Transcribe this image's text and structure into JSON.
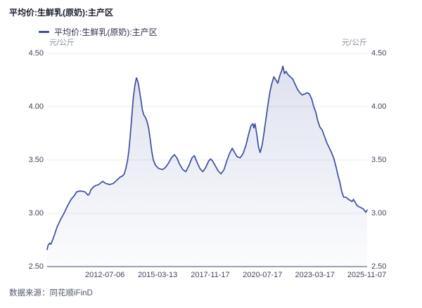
{
  "header": {
    "title": "平均价:生鲜乳(原奶):主产区"
  },
  "legend": {
    "series_label": "平均价:生鲜乳(原奶):主产区"
  },
  "axes": {
    "left_unit": "元/公斤",
    "right_unit": "元/公斤",
    "y_ticks": [
      "2.50",
      "3.00",
      "3.50",
      "4.00",
      "4.50"
    ],
    "x_ticks": [
      "2012-07-06",
      "2015-03-13",
      "2017-11-17",
      "2020-07-17",
      "2023-03-17",
      "2025-11-07"
    ]
  },
  "footer": {
    "source": "数据来源：同花顺iFinD"
  },
  "colors": {
    "line": "#3C4E9E",
    "fill_top": "rgba(63,81,160,0.17)",
    "fill_bottom": "rgba(63,81,160,0.02)",
    "grid": "#EAEBF2",
    "axis_line": "#9BA1B5",
    "title_text": "#1B1E2E",
    "tick_text": "#3F455C",
    "unit_text": "#8A90A3",
    "source_text": "#50566B"
  },
  "chart_data": {
    "type": "area",
    "title": "平均价:生鲜乳(原奶):主产区",
    "series_name": "平均价:生鲜乳(原奶):主产区",
    "ylabel": "元/公斤",
    "ylim": [
      2.5,
      4.5
    ],
    "x_range": [
      "2009-08",
      "2025-11-07"
    ],
    "grid": "horizontal",
    "legend_position": "top-left",
    "points": [
      [
        2009.57,
        2.66
      ],
      [
        2009.62,
        2.7
      ],
      [
        2009.7,
        2.72
      ],
      [
        2009.76,
        2.71
      ],
      [
        2009.85,
        2.75
      ],
      [
        2009.95,
        2.8
      ],
      [
        2010.07,
        2.87
      ],
      [
        2010.25,
        2.94
      ],
      [
        2010.43,
        3.0
      ],
      [
        2010.61,
        3.07
      ],
      [
        2010.79,
        3.13
      ],
      [
        2010.97,
        3.17
      ],
      [
        2011.07,
        3.2
      ],
      [
        2011.25,
        3.21
      ],
      [
        2011.5,
        3.2
      ],
      [
        2011.65,
        3.17
      ],
      [
        2011.72,
        3.18
      ],
      [
        2011.8,
        3.22
      ],
      [
        2011.95,
        3.25
      ],
      [
        2012.05,
        3.26
      ],
      [
        2012.2,
        3.27
      ],
      [
        2012.4,
        3.3
      ],
      [
        2012.55,
        3.28
      ],
      [
        2012.76,
        3.27
      ],
      [
        2012.94,
        3.28
      ],
      [
        2013.12,
        3.31
      ],
      [
        2013.3,
        3.34
      ],
      [
        2013.41,
        3.35
      ],
      [
        2013.5,
        3.37
      ],
      [
        2013.58,
        3.42
      ],
      [
        2013.66,
        3.49
      ],
      [
        2013.73,
        3.58
      ],
      [
        2013.8,
        3.72
      ],
      [
        2013.88,
        3.9
      ],
      [
        2013.96,
        4.08
      ],
      [
        2014.04,
        4.2
      ],
      [
        2014.12,
        4.27
      ],
      [
        2014.18,
        4.24
      ],
      [
        2014.24,
        4.19
      ],
      [
        2014.3,
        4.12
      ],
      [
        2014.36,
        4.05
      ],
      [
        2014.42,
        3.97
      ],
      [
        2014.5,
        3.92
      ],
      [
        2014.58,
        3.9
      ],
      [
        2014.66,
        3.86
      ],
      [
        2014.74,
        3.8
      ],
      [
        2014.82,
        3.7
      ],
      [
        2014.9,
        3.58
      ],
      [
        2014.98,
        3.5
      ],
      [
        2015.09,
        3.45
      ],
      [
        2015.25,
        3.42
      ],
      [
        2015.45,
        3.41
      ],
      [
        2015.6,
        3.43
      ],
      [
        2015.75,
        3.47
      ],
      [
        2015.9,
        3.52
      ],
      [
        2016.05,
        3.55
      ],
      [
        2016.18,
        3.52
      ],
      [
        2016.32,
        3.46
      ],
      [
        2016.48,
        3.41
      ],
      [
        2016.63,
        3.39
      ],
      [
        2016.8,
        3.45
      ],
      [
        2016.95,
        3.52
      ],
      [
        2017.07,
        3.54
      ],
      [
        2017.2,
        3.48
      ],
      [
        2017.35,
        3.42
      ],
      [
        2017.5,
        3.39
      ],
      [
        2017.65,
        3.43
      ],
      [
        2017.8,
        3.49
      ],
      [
        2017.9,
        3.51
      ],
      [
        2018.0,
        3.49
      ],
      [
        2018.12,
        3.45
      ],
      [
        2018.27,
        3.4
      ],
      [
        2018.43,
        3.37
      ],
      [
        2018.58,
        3.41
      ],
      [
        2018.72,
        3.49
      ],
      [
        2018.86,
        3.56
      ],
      [
        2019.0,
        3.61
      ],
      [
        2019.12,
        3.57
      ],
      [
        2019.25,
        3.53
      ],
      [
        2019.4,
        3.52
      ],
      [
        2019.55,
        3.56
      ],
      [
        2019.7,
        3.64
      ],
      [
        2019.82,
        3.73
      ],
      [
        2019.95,
        3.82
      ],
      [
        2020.05,
        3.84
      ],
      [
        2020.1,
        3.8
      ],
      [
        2020.16,
        3.84
      ],
      [
        2020.25,
        3.74
      ],
      [
        2020.34,
        3.62
      ],
      [
        2020.42,
        3.57
      ],
      [
        2020.52,
        3.64
      ],
      [
        2020.62,
        3.76
      ],
      [
        2020.72,
        3.89
      ],
      [
        2020.82,
        4.02
      ],
      [
        2020.92,
        4.14
      ],
      [
        2021.02,
        4.22
      ],
      [
        2021.12,
        4.28
      ],
      [
        2021.22,
        4.25
      ],
      [
        2021.32,
        4.22
      ],
      [
        2021.42,
        4.29
      ],
      [
        2021.52,
        4.34
      ],
      [
        2021.58,
        4.38
      ],
      [
        2021.66,
        4.31
      ],
      [
        2021.74,
        4.33
      ],
      [
        2021.84,
        4.3
      ],
      [
        2021.95,
        4.28
      ],
      [
        2022.08,
        4.26
      ],
      [
        2022.2,
        4.21
      ],
      [
        2022.33,
        4.16
      ],
      [
        2022.45,
        4.13
      ],
      [
        2022.56,
        4.11
      ],
      [
        2022.7,
        4.12
      ],
      [
        2022.82,
        4.13
      ],
      [
        2022.93,
        4.12
      ],
      [
        2023.05,
        4.07
      ],
      [
        2023.15,
        4.0
      ],
      [
        2023.25,
        3.95
      ],
      [
        2023.35,
        3.87
      ],
      [
        2023.46,
        3.81
      ],
      [
        2023.58,
        3.78
      ],
      [
        2023.7,
        3.72
      ],
      [
        2023.82,
        3.66
      ],
      [
        2023.95,
        3.61
      ],
      [
        2024.08,
        3.56
      ],
      [
        2024.18,
        3.51
      ],
      [
        2024.28,
        3.44
      ],
      [
        2024.38,
        3.36
      ],
      [
        2024.48,
        3.29
      ],
      [
        2024.58,
        3.2
      ],
      [
        2024.68,
        3.15
      ],
      [
        2024.8,
        3.15
      ],
      [
        2024.92,
        3.13
      ],
      [
        2025.02,
        3.12
      ],
      [
        2025.1,
        3.11
      ],
      [
        2025.17,
        3.13
      ],
      [
        2025.27,
        3.1
      ],
      [
        2025.37,
        3.07
      ],
      [
        2025.47,
        3.06
      ],
      [
        2025.58,
        3.05
      ],
      [
        2025.68,
        3.04
      ],
      [
        2025.76,
        3.02
      ],
      [
        2025.81,
        3.01
      ],
      [
        2025.87,
        3.03
      ]
    ]
  }
}
